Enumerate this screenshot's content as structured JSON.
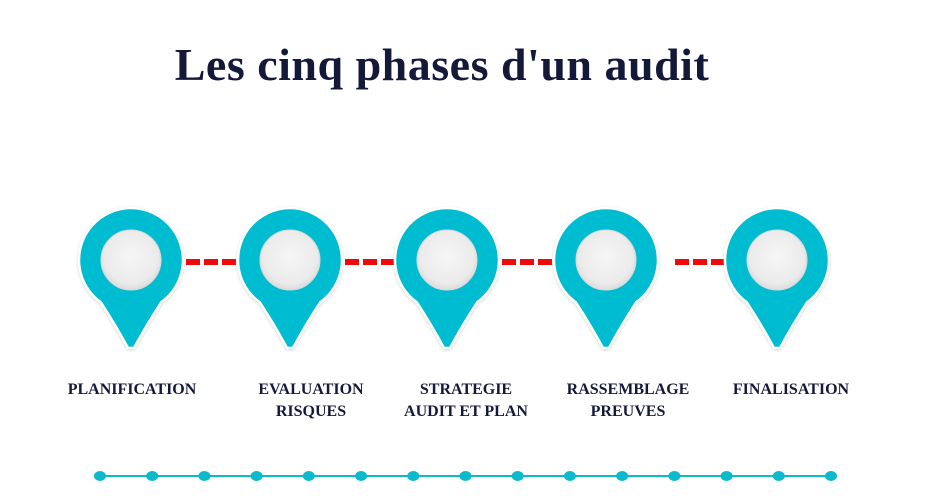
{
  "title": "Les cinq phases d'un audit",
  "colors": {
    "marker": "#05bcd1",
    "marker_inner": "#eeeeee",
    "connector": "#ee0a0a",
    "title": "#14193a",
    "timeline": "#0bbacb"
  },
  "phases": [
    {
      "label": "PLANIFICATION",
      "icon": "map-pin-marker-icon"
    },
    {
      "label": "EVALUATION\nRISQUES",
      "icon": "map-pin-marker-icon"
    },
    {
      "label": "STRATEGIE\nAUDIT ET PLAN",
      "icon": "map-pin-marker-icon"
    },
    {
      "label": "RASSEMBLAGE\nPREUVES",
      "icon": "map-pin-marker-icon"
    },
    {
      "label": "FINALISATION",
      "icon": "map-pin-marker-icon"
    }
  ],
  "timeline_dots": 15
}
